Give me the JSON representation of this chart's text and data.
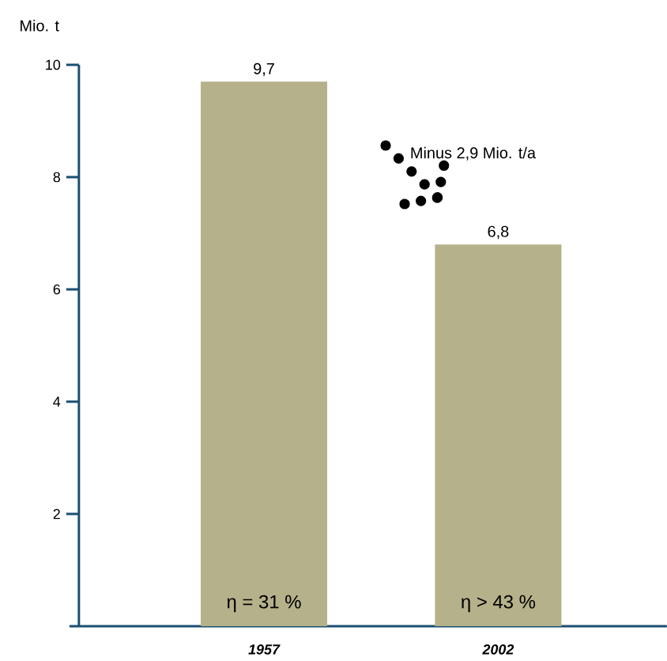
{
  "chart_data": {
    "type": "bar",
    "ylabel": "Mio. t",
    "categories": [
      "1957",
      "2002"
    ],
    "values": [
      9.7,
      6.8
    ],
    "value_labels": [
      "9,7",
      "6,8"
    ],
    "color": "#b5b18a",
    "ylim": [
      0,
      10
    ],
    "yticks": [
      2,
      4,
      6,
      8,
      10
    ],
    "annotations": [
      "Minus 2,9 Mio. t/a",
      "η = 31 %",
      "η > 43 %"
    ],
    "grid": false
  }
}
